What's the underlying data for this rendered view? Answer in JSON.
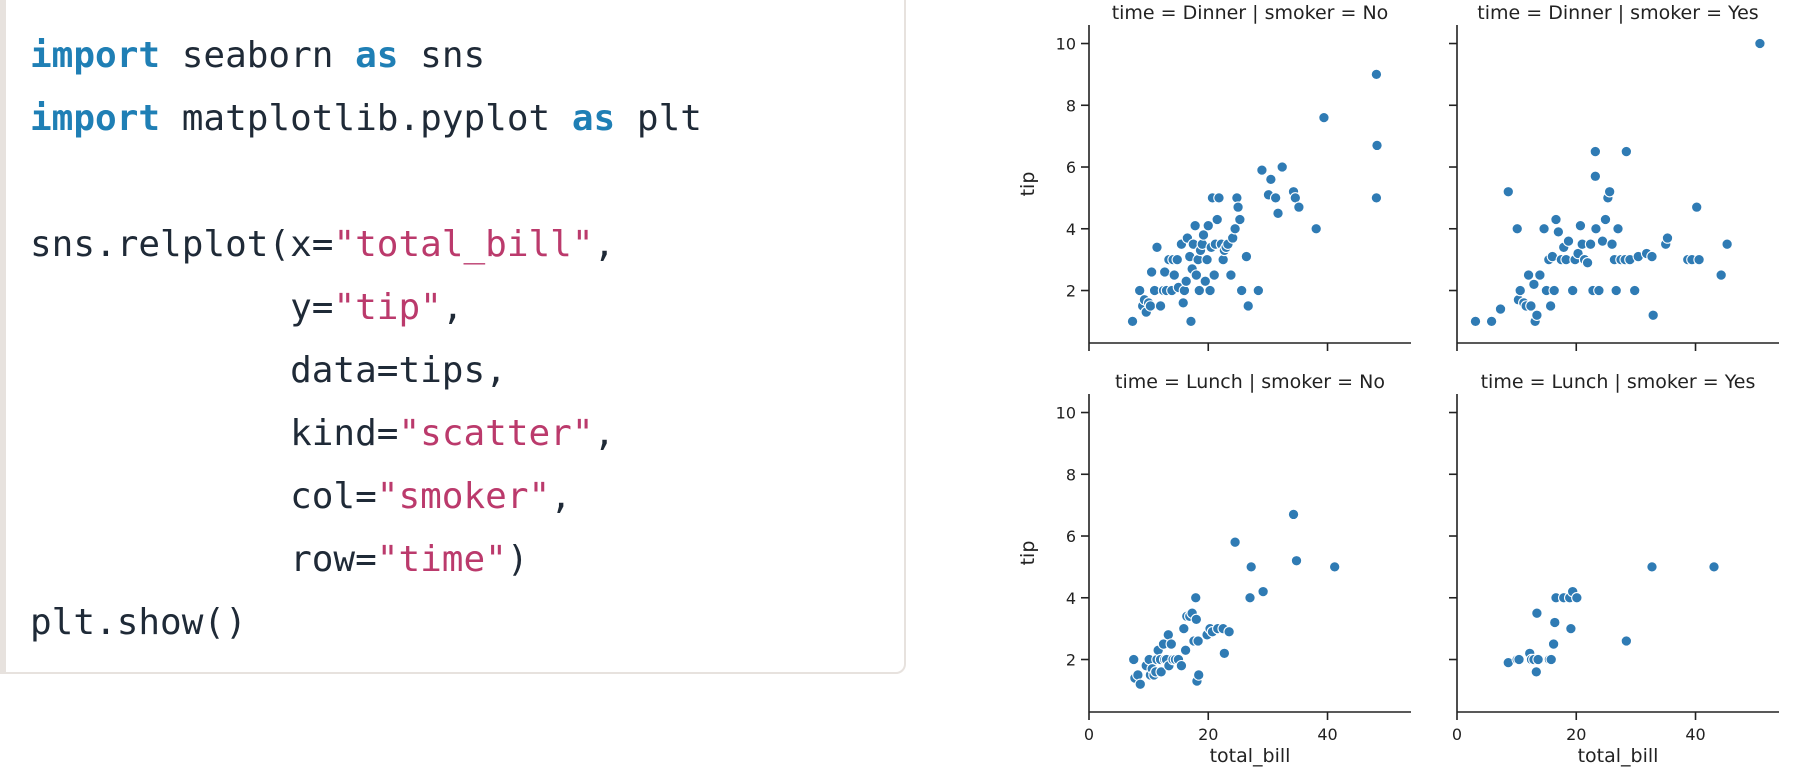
{
  "code": {
    "lines": [
      [
        {
          "t": "import",
          "c": "kw"
        },
        {
          "t": " seaborn ",
          "c": ""
        },
        {
          "t": "as",
          "c": "kw"
        },
        {
          "t": " sns",
          "c": ""
        }
      ],
      [
        {
          "t": "import",
          "c": "kw"
        },
        {
          "t": " matplotlib.pyplot ",
          "c": ""
        },
        {
          "t": "as",
          "c": "kw"
        },
        {
          "t": " plt",
          "c": ""
        }
      ],
      [],
      [
        {
          "t": "sns.relplot(x=",
          "c": ""
        },
        {
          "t": "\"total_bill\"",
          "c": "str"
        },
        {
          "t": ",",
          "c": ""
        }
      ],
      [
        {
          "t": "            y=",
          "c": ""
        },
        {
          "t": "\"tip\"",
          "c": "str"
        },
        {
          "t": ",",
          "c": ""
        }
      ],
      [
        {
          "t": "            data=tips,",
          "c": ""
        }
      ],
      [
        {
          "t": "            kind=",
          "c": ""
        },
        {
          "t": "\"scatter\"",
          "c": "str"
        },
        {
          "t": ",",
          "c": ""
        }
      ],
      [
        {
          "t": "            col=",
          "c": ""
        },
        {
          "t": "\"smoker\"",
          "c": "str"
        },
        {
          "t": ",",
          "c": ""
        }
      ],
      [
        {
          "t": "            row=",
          "c": ""
        },
        {
          "t": "\"time\"",
          "c": "str"
        },
        {
          "t": ")",
          "c": ""
        }
      ],
      [
        {
          "t": "plt.show()",
          "c": ""
        }
      ]
    ]
  },
  "colors": {
    "point": "#2f7bb4",
    "keyword": "#1f7fb5",
    "string": "#bb3a6c"
  },
  "chart_data": {
    "type": "scatter",
    "x_label": "total_bill",
    "y_label": "tip",
    "xlim": [
      0,
      54
    ],
    "ylim": [
      0.3,
      10.6
    ],
    "x_ticks": [
      0,
      20,
      40
    ],
    "y_ticks": [
      2,
      4,
      6,
      8,
      10
    ],
    "panels": [
      {
        "title": "time = Dinner | smoker = No",
        "row": 0,
        "col": 0,
        "points": [
          [
            7.3,
            1.0
          ],
          [
            8.5,
            2.0
          ],
          [
            9.0,
            1.5
          ],
          [
            9.6,
            1.3
          ],
          [
            9.3,
            1.7
          ],
          [
            10.0,
            1.6
          ],
          [
            10.5,
            2.6
          ],
          [
            10.3,
            1.5
          ],
          [
            11.0,
            2.0
          ],
          [
            11.4,
            3.4
          ],
          [
            12.0,
            1.5
          ],
          [
            12.5,
            2.0
          ],
          [
            12.7,
            2.6
          ],
          [
            13.0,
            2.0
          ],
          [
            13.4,
            3.0
          ],
          [
            13.9,
            2.0
          ],
          [
            14.3,
            2.5
          ],
          [
            14.1,
            3.0
          ],
          [
            14.8,
            3.0
          ],
          [
            15.0,
            2.1
          ],
          [
            15.5,
            3.5
          ],
          [
            15.8,
            1.6
          ],
          [
            16.0,
            2.0
          ],
          [
            16.3,
            2.3
          ],
          [
            16.5,
            3.7
          ],
          [
            16.9,
            3.1
          ],
          [
            17.1,
            1.0
          ],
          [
            17.3,
            2.7
          ],
          [
            17.5,
            3.5
          ],
          [
            17.8,
            4.1
          ],
          [
            18.0,
            2.5
          ],
          [
            18.3,
            3.0
          ],
          [
            18.5,
            2.0
          ],
          [
            18.7,
            3.3
          ],
          [
            19.0,
            3.5
          ],
          [
            19.2,
            3.8
          ],
          [
            19.5,
            2.3
          ],
          [
            19.8,
            3.0
          ],
          [
            20.0,
            4.1
          ],
          [
            20.3,
            2.0
          ],
          [
            20.5,
            3.4
          ],
          [
            20.7,
            5.0
          ],
          [
            21.0,
            2.5
          ],
          [
            21.2,
            3.5
          ],
          [
            21.5,
            4.3
          ],
          [
            21.8,
            5.0
          ],
          [
            22.2,
            3.5
          ],
          [
            22.5,
            3.0
          ],
          [
            22.7,
            3.3
          ],
          [
            23.0,
            3.4
          ],
          [
            23.3,
            3.5
          ],
          [
            23.8,
            2.5
          ],
          [
            24.1,
            3.7
          ],
          [
            24.5,
            4.0
          ],
          [
            24.8,
            5.0
          ],
          [
            25.0,
            4.7
          ],
          [
            25.3,
            4.3
          ],
          [
            25.6,
            2.0
          ],
          [
            26.4,
            3.1
          ],
          [
            26.7,
            1.5
          ],
          [
            28.4,
            2.0
          ],
          [
            29.0,
            5.9
          ],
          [
            30.1,
            5.1
          ],
          [
            30.5,
            5.6
          ],
          [
            31.3,
            5.0
          ],
          [
            31.7,
            4.5
          ],
          [
            32.4,
            6.0
          ],
          [
            34.3,
            5.2
          ],
          [
            34.6,
            5.0
          ],
          [
            35.2,
            4.7
          ],
          [
            38.1,
            4.0
          ],
          [
            39.4,
            7.6
          ],
          [
            48.2,
            9.0
          ],
          [
            48.3,
            6.7
          ],
          [
            48.2,
            5.0
          ]
        ]
      },
      {
        "title": "time = Dinner | smoker = Yes",
        "row": 0,
        "col": 1,
        "points": [
          [
            3.1,
            1.0
          ],
          [
            5.8,
            1.0
          ],
          [
            7.3,
            1.4
          ],
          [
            8.6,
            5.2
          ],
          [
            10.1,
            4.0
          ],
          [
            10.3,
            1.7
          ],
          [
            10.6,
            2.0
          ],
          [
            11.2,
            1.6
          ],
          [
            11.6,
            1.5
          ],
          [
            12.0,
            2.5
          ],
          [
            12.4,
            1.5
          ],
          [
            12.9,
            2.2
          ],
          [
            13.1,
            1.0
          ],
          [
            13.4,
            1.2
          ],
          [
            13.9,
            2.5
          ],
          [
            14.6,
            4.0
          ],
          [
            15.0,
            2.0
          ],
          [
            15.4,
            3.0
          ],
          [
            15.7,
            1.5
          ],
          [
            16.0,
            3.1
          ],
          [
            16.3,
            2.0
          ],
          [
            16.6,
            4.3
          ],
          [
            17.0,
            3.9
          ],
          [
            17.5,
            3.0
          ],
          [
            17.9,
            3.4
          ],
          [
            18.3,
            3.0
          ],
          [
            18.7,
            3.6
          ],
          [
            19.4,
            2.0
          ],
          [
            19.8,
            3.0
          ],
          [
            20.3,
            3.2
          ],
          [
            20.7,
            4.1
          ],
          [
            21.0,
            3.5
          ],
          [
            21.4,
            3.0
          ],
          [
            21.9,
            2.9
          ],
          [
            22.4,
            3.5
          ],
          [
            22.8,
            2.0
          ],
          [
            23.2,
            6.5
          ],
          [
            23.3,
            4.0
          ],
          [
            23.2,
            5.7
          ],
          [
            23.8,
            2.0
          ],
          [
            24.4,
            3.6
          ],
          [
            24.9,
            4.3
          ],
          [
            25.3,
            5.0
          ],
          [
            25.6,
            5.2
          ],
          [
            26.0,
            3.5
          ],
          [
            26.4,
            3.0
          ],
          [
            26.7,
            2.0
          ],
          [
            27.0,
            4.0
          ],
          [
            27.5,
            3.0
          ],
          [
            28.2,
            3.0
          ],
          [
            28.4,
            6.5
          ],
          [
            29.0,
            3.0
          ],
          [
            29.8,
            2.0
          ],
          [
            30.4,
            3.1
          ],
          [
            31.8,
            3.2
          ],
          [
            32.9,
            1.2
          ],
          [
            32.7,
            3.1
          ],
          [
            35.0,
            3.5
          ],
          [
            35.3,
            3.7
          ],
          [
            40.2,
            4.7
          ],
          [
            38.7,
            3.0
          ],
          [
            39.4,
            3.0
          ],
          [
            40.6,
            3.0
          ],
          [
            44.3,
            2.5
          ],
          [
            45.3,
            3.5
          ],
          [
            50.8,
            10.0
          ]
        ]
      },
      {
        "title": "time = Lunch | smoker = No",
        "row": 1,
        "col": 0,
        "points": [
          [
            7.5,
            2.0
          ],
          [
            7.7,
            1.4
          ],
          [
            8.2,
            1.5
          ],
          [
            8.6,
            1.2
          ],
          [
            9.6,
            1.8
          ],
          [
            10.1,
            2.0
          ],
          [
            10.3,
            1.5
          ],
          [
            10.6,
            1.7
          ],
          [
            10.9,
            1.5
          ],
          [
            11.2,
            1.6
          ],
          [
            11.4,
            2.0
          ],
          [
            11.6,
            2.3
          ],
          [
            12.0,
            2.0
          ],
          [
            12.1,
            1.6
          ],
          [
            12.5,
            2.5
          ],
          [
            12.7,
            2.0
          ],
          [
            13.0,
            2.0
          ],
          [
            13.3,
            2.8
          ],
          [
            13.4,
            1.8
          ],
          [
            13.8,
            2.5
          ],
          [
            14.1,
            2.0
          ],
          [
            14.5,
            2.0
          ],
          [
            15.0,
            2.0
          ],
          [
            15.5,
            1.8
          ],
          [
            15.9,
            3.0
          ],
          [
            16.2,
            2.3
          ],
          [
            16.4,
            3.4
          ],
          [
            16.9,
            3.4
          ],
          [
            17.3,
            3.5
          ],
          [
            17.6,
            2.6
          ],
          [
            17.9,
            4.0
          ],
          [
            18.0,
            3.3
          ],
          [
            18.3,
            2.6
          ],
          [
            18.1,
            1.3
          ],
          [
            18.4,
            1.5
          ],
          [
            19.8,
            2.8
          ],
          [
            20.3,
            3.0
          ],
          [
            20.7,
            2.9
          ],
          [
            21.6,
            3.0
          ],
          [
            22.5,
            3.0
          ],
          [
            22.7,
            2.2
          ],
          [
            23.5,
            2.9
          ],
          [
            24.5,
            5.8
          ],
          [
            27.0,
            4.0
          ],
          [
            27.2,
            5.0
          ],
          [
            29.2,
            4.2
          ],
          [
            34.3,
            6.7
          ],
          [
            34.8,
            5.2
          ],
          [
            41.2,
            5.0
          ]
        ]
      },
      {
        "title": "time = Lunch | smoker = Yes",
        "row": 1,
        "col": 1,
        "points": [
          [
            8.6,
            1.9
          ],
          [
            10.1,
            2.0
          ],
          [
            10.4,
            2.0
          ],
          [
            12.2,
            2.2
          ],
          [
            12.5,
            2.0
          ],
          [
            12.9,
            2.0
          ],
          [
            13.3,
            1.6
          ],
          [
            13.4,
            3.5
          ],
          [
            13.6,
            2.0
          ],
          [
            15.5,
            2.0
          ],
          [
            15.8,
            2.0
          ],
          [
            16.2,
            2.5
          ],
          [
            16.4,
            3.2
          ],
          [
            16.6,
            4.0
          ],
          [
            17.9,
            4.0
          ],
          [
            18.9,
            4.0
          ],
          [
            19.1,
            3.0
          ],
          [
            19.4,
            4.2
          ],
          [
            20.1,
            4.0
          ],
          [
            28.4,
            2.6
          ],
          [
            32.7,
            5.0
          ],
          [
            43.1,
            5.0
          ]
        ]
      }
    ]
  }
}
